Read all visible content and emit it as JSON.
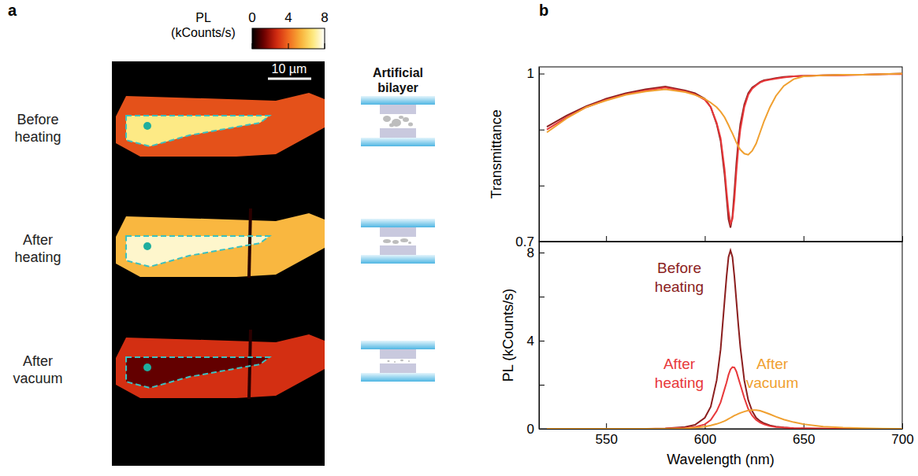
{
  "chart_data": [
    {
      "type": "image_map",
      "panel": "a",
      "colorbar": {
        "label": "PL (kCounts/s)",
        "range": [
          0,
          8
        ],
        "ticks": [
          0,
          4,
          8
        ]
      },
      "scale_bar": "10 µm",
      "schematic_title": "Artificial bilayer",
      "images": [
        {
          "label": "Before heating",
          "flake_pl": 3.5,
          "region_pl": 6.8
        },
        {
          "label": "After heating",
          "flake_pl": 5.5,
          "region_pl": 7.5
        },
        {
          "label": "After vacuum",
          "flake_pl": 2.8,
          "region_pl": 1.2
        }
      ]
    },
    {
      "type": "line",
      "panel": "b",
      "y_label": "Transmittance",
      "x": [
        520,
        530,
        540,
        550,
        560,
        570,
        580,
        590,
        595,
        600,
        603,
        606,
        608,
        610,
        611,
        612,
        613,
        614,
        615,
        616,
        617,
        618,
        620,
        622,
        624,
        626,
        628,
        630,
        633,
        636,
        640,
        645,
        650,
        660,
        670,
        680,
        690,
        700
      ],
      "xlim": [
        516,
        700
      ],
      "xticks": [
        550,
        600,
        650,
        700
      ],
      "ylim": [
        0.7,
        1.012
      ],
      "yticks": [
        0.7,
        {
          "value": 0.8,
          "label": null
        },
        {
          "value": 0.9,
          "label": null
        },
        1
      ],
      "tick_labels": "y",
      "series": [
        {
          "color": "#8b1e1e",
          "values": [
            0.905,
            0.925,
            0.942,
            0.955,
            0.965,
            0.972,
            0.977,
            0.97,
            0.965,
            0.955,
            0.94,
            0.91,
            0.88,
            0.82,
            0.78,
            0.74,
            0.725,
            0.745,
            0.79,
            0.84,
            0.88,
            0.91,
            0.945,
            0.965,
            0.975,
            0.98,
            0.985,
            0.988,
            0.99,
            0.992,
            0.994,
            0.995,
            0.996,
            0.997,
            0.998,
            0.998,
            0.999,
            1.0
          ]
        },
        {
          "color": "#e8383a",
          "values": [
            0.9,
            0.922,
            0.94,
            0.953,
            0.963,
            0.97,
            0.975,
            0.968,
            0.963,
            0.953,
            0.94,
            0.912,
            0.885,
            0.83,
            0.79,
            0.755,
            0.732,
            0.74,
            0.775,
            0.825,
            0.868,
            0.9,
            0.94,
            0.962,
            0.973,
            0.979,
            0.984,
            0.987,
            0.989,
            0.991,
            0.993,
            0.995,
            0.996,
            0.997,
            0.997,
            0.998,
            0.999,
            0.999
          ]
        },
        {
          "color": "#f0a030",
          "values": [
            0.895,
            0.92,
            0.94,
            0.952,
            0.962,
            0.968,
            0.972,
            0.967,
            0.962,
            0.955,
            0.948,
            0.94,
            0.932,
            0.922,
            0.915,
            0.908,
            0.9,
            0.893,
            0.885,
            0.877,
            0.87,
            0.864,
            0.857,
            0.855,
            0.862,
            0.875,
            0.895,
            0.915,
            0.94,
            0.96,
            0.978,
            0.99,
            0.995,
            0.997,
            0.998,
            0.998,
            0.999,
            1.0
          ]
        }
      ]
    },
    {
      "type": "line",
      "x_label": "Wavelength (nm)",
      "y_label": "PL (kCounts/s)",
      "x": [
        520,
        530,
        540,
        550,
        560,
        570,
        580,
        590,
        595,
        600,
        603,
        606,
        608,
        610,
        611,
        612,
        613,
        614,
        615,
        616,
        617,
        618,
        620,
        622,
        624,
        626,
        628,
        630,
        633,
        636,
        640,
        645,
        650,
        660,
        670,
        680,
        690,
        700
      ],
      "xlim": [
        516,
        700
      ],
      "xticks": [
        550,
        600,
        650,
        700
      ],
      "ylim": [
        0,
        8.5
      ],
      "yticks": [
        0,
        {
          "value": 2,
          "label": null
        },
        4,
        {
          "value": 6,
          "label": null
        },
        8
      ],
      "series": [
        {
          "name": "Before heating",
          "color": "#8b1e1e",
          "values": [
            0,
            0,
            0,
            0,
            0,
            0,
            0.02,
            0.08,
            0.18,
            0.5,
            1.0,
            2.2,
            3.6,
            5.8,
            6.9,
            7.8,
            8.1,
            7.8,
            6.9,
            5.8,
            4.7,
            3.7,
            2.2,
            1.3,
            0.8,
            0.5,
            0.35,
            0.25,
            0.15,
            0.1,
            0.06,
            0.03,
            0.02,
            0.01,
            0,
            0,
            0,
            0
          ]
        },
        {
          "name": "After heating",
          "color": "#e8383a",
          "values": [
            0,
            0,
            0,
            0,
            0,
            0,
            0.01,
            0.04,
            0.08,
            0.2,
            0.4,
            0.8,
            1.2,
            1.8,
            2.1,
            2.45,
            2.7,
            2.8,
            2.78,
            2.6,
            2.3,
            2.0,
            1.4,
            0.9,
            0.6,
            0.4,
            0.28,
            0.2,
            0.12,
            0.08,
            0.05,
            0.03,
            0.02,
            0.01,
            0,
            0,
            0,
            0
          ]
        },
        {
          "name": "After vacuum",
          "color": "#f0a030",
          "values": [
            0,
            0,
            0,
            0,
            0,
            0,
            0,
            0.02,
            0.05,
            0.1,
            0.15,
            0.22,
            0.28,
            0.35,
            0.4,
            0.45,
            0.5,
            0.55,
            0.6,
            0.64,
            0.68,
            0.72,
            0.78,
            0.83,
            0.85,
            0.85,
            0.82,
            0.76,
            0.66,
            0.55,
            0.42,
            0.3,
            0.21,
            0.1,
            0.05,
            0.03,
            0.01,
            0
          ]
        }
      ]
    }
  ]
}
